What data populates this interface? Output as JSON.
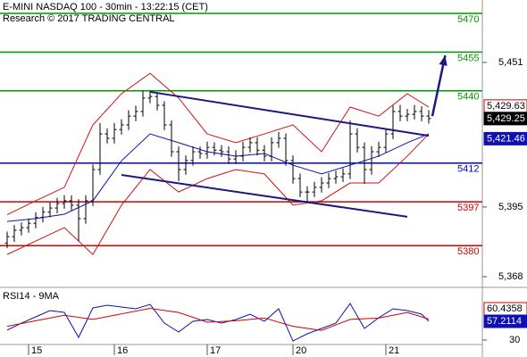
{
  "chart_data": [
    {
      "type": "ohlc",
      "title": "E-MINI NASDAQ 100 - 30min - 13:22:15 (CET)",
      "subtitle": "Research © 2017 TRADING CENTRAL",
      "color": "#000000",
      "open": [
        5381,
        5383.5,
        5386,
        5387,
        5388.7,
        5391,
        5393,
        5394.6,
        5396.3,
        5397.4,
        5395.7,
        5390.5,
        5397.4,
        5409.5,
        5423.3,
        5421.6,
        5425,
        5426.8,
        5430.2,
        5432,
        5437.2,
        5437.8,
        5434.4,
        5426.8,
        5416.4,
        5409.5,
        5413,
        5416.4,
        5415.7,
        5418.1,
        5417,
        5416.4,
        5413.6,
        5414.7,
        5418.1,
        5419.9,
        5417,
        5414.7,
        5419.9,
        5421.6,
        5413,
        5406,
        5400.8,
        5400.8,
        5402.6,
        5404.3,
        5406,
        5406.7,
        5407.8,
        5423.3,
        5418.1,
        5409.5,
        5416.4,
        5418.1,
        5423.3,
        5432,
        5430.2,
        5430.9,
        5432,
        5430.2
      ],
      "high": [
        5385.5,
        5388,
        5389,
        5390.5,
        5393,
        5395,
        5396.8,
        5398.5,
        5399.6,
        5399.5,
        5398,
        5399.6,
        5411.5,
        5427.5,
        5425.5,
        5427.5,
        5429,
        5432.5,
        5434.2,
        5440,
        5440,
        5439.5,
        5436,
        5428.5,
        5418.5,
        5415,
        5418.5,
        5418.5,
        5420.3,
        5420,
        5419,
        5418.5,
        5417,
        5420.3,
        5422,
        5422,
        5419,
        5422,
        5424,
        5423.5,
        5415,
        5408,
        5403,
        5404.8,
        5406.5,
        5408.2,
        5409,
        5410,
        5428.5,
        5425.5,
        5420,
        5418.6,
        5420.3,
        5425.5,
        5434.2,
        5434.5,
        5433,
        5434.5,
        5434,
        5432.5
      ],
      "low": [
        5379,
        5381.5,
        5384,
        5385,
        5386.7,
        5389,
        5391,
        5392.6,
        5394.3,
        5393.7,
        5381.8,
        5388.5,
        5395.4,
        5407.5,
        5419.6,
        5419.6,
        5423,
        5424.8,
        5428.2,
        5430,
        5435.2,
        5432.4,
        5424.8,
        5414.4,
        5405,
        5407.5,
        5411,
        5413.7,
        5413.7,
        5415,
        5414.4,
        5411.6,
        5411.6,
        5412.7,
        5416.1,
        5415,
        5412.7,
        5412.7,
        5417.9,
        5411,
        5404,
        5398.8,
        5397,
        5398.8,
        5400.6,
        5402.3,
        5404,
        5404.7,
        5405.8,
        5416.1,
        5404,
        5407.5,
        5414.4,
        5416.1,
        5421.3,
        5428.2,
        5428.2,
        5428.9,
        5428.2,
        5427.3
      ],
      "close": [
        5383.5,
        5386,
        5387,
        5388.7,
        5391,
        5393,
        5394.6,
        5396.3,
        5397.4,
        5395.7,
        5390.5,
        5397.4,
        5409.5,
        5423.3,
        5421.6,
        5425,
        5426.8,
        5430.2,
        5432,
        5437.2,
        5437.8,
        5434.4,
        5426.8,
        5416.4,
        5409.5,
        5413,
        5416.4,
        5415.7,
        5418.1,
        5417,
        5416.4,
        5413.6,
        5414.7,
        5418.1,
        5419.9,
        5417,
        5414.7,
        5419.9,
        5421.6,
        5413,
        5406,
        5400.8,
        5400.8,
        5402.6,
        5404.3,
        5406,
        5406.7,
        5407.8,
        5423.3,
        5418.1,
        5409.5,
        5416.4,
        5418.1,
        5423.3,
        5432,
        5430.2,
        5430.9,
        5432,
        5430.2,
        5429.25
      ],
      "xlim": [
        -0.375,
        66.5
      ],
      "xticks": [
        {
          "value": 3,
          "label": "15"
        },
        {
          "value": 15,
          "label": "16"
        },
        {
          "value": 28,
          "label": "17"
        },
        {
          "value": 40,
          "label": "20"
        },
        {
          "value": 53,
          "label": "21"
        }
      ],
      "ylim": [
        5363.85,
        5475.19
      ],
      "yticks": [
        {
          "value": 5451,
          "label": "5,451"
        },
        {
          "value": 5395,
          "label": "5,395"
        },
        {
          "value": 5368,
          "label": "5,368"
        }
      ],
      "levels": [
        {
          "value": 5470,
          "color": "#009900"
        },
        {
          "value": 5455,
          "color": "#009900"
        },
        {
          "value": 5440,
          "color": "#009900"
        },
        {
          "value": 5412,
          "color": "#0000cc"
        },
        {
          "value": 5397,
          "color": "#cc0000"
        },
        {
          "value": 5380,
          "color": "#cc0000"
        }
      ],
      "overlays": [
        {
          "color": "#d01010",
          "x": [
            0,
            4,
            8,
            12,
            16,
            20,
            24,
            28,
            32,
            36,
            40,
            44,
            48,
            52,
            56,
            59
          ],
          "values": [
            5392,
            5397.4,
            5402.6,
            5426.8,
            5438.9,
            5446.8,
            5437.2,
            5423.3,
            5419.9,
            5423.3,
            5426.8,
            5416.4,
            5433.7,
            5430.2,
            5438.9,
            5433.7
          ]
        },
        {
          "color": "#d01010",
          "x": [
            0,
            4,
            8,
            12,
            16,
            20,
            24,
            28,
            32,
            36,
            40,
            44,
            48,
            52,
            56,
            59
          ],
          "values": [
            5376.6,
            5381.8,
            5387,
            5376.6,
            5395.7,
            5409.5,
            5400.8,
            5406,
            5409.5,
            5407.8,
            5395.7,
            5397.4,
            5404.3,
            5404.3,
            5414.7,
            5423.3
          ]
        },
        {
          "color": "#1010b0",
          "x": [
            0,
            4,
            8,
            12,
            16,
            20,
            24,
            28,
            32,
            36,
            40,
            44,
            48,
            52,
            56,
            59
          ],
          "values": [
            5389.4,
            5390.5,
            5392.2,
            5397.4,
            5412.9,
            5423.3,
            5419.9,
            5416.4,
            5414.7,
            5415.7,
            5411.2,
            5407.8,
            5411.2,
            5414.7,
            5419.9,
            5423.3
          ]
        }
      ],
      "trendlines": [
        {
          "color": "#1a1a80",
          "x": [
            20,
            59
          ],
          "values": [
            5439.6,
            5422.6
          ]
        },
        {
          "color": "#1a1a80",
          "x": [
            16,
            56
          ],
          "values": [
            5407.4,
            5391.2
          ]
        }
      ],
      "arrow": {
        "color": "#1a1a80",
        "x": [
          59.5,
          61.3
        ],
        "values": [
          5430.2,
          5453.7
        ]
      },
      "last_values": [
        {
          "value": 5429.63,
          "label": "5,429.63",
          "style": "outline",
          "color": "#cc0000"
        },
        {
          "value": 5429.25,
          "label": "5,429.25",
          "style": "fill",
          "color": "#000000"
        },
        {
          "value": 5421.46,
          "label": "5,421.46",
          "style": "fill",
          "color": "#1010b0"
        }
      ]
    },
    {
      "type": "line",
      "title": "RSI14 - 9MA",
      "xlim": [
        -0.375,
        66.5
      ],
      "ylim": [
        8,
        100
      ],
      "yticks": [
        30
      ],
      "series": [
        {
          "color": "#1010b0",
          "x": [
            0,
            2,
            4,
            6,
            8,
            10,
            12,
            14,
            16,
            18,
            20,
            22,
            24,
            26,
            28,
            30,
            32,
            34,
            36,
            38,
            40,
            42,
            44,
            46,
            48,
            50,
            52,
            54,
            56,
            58,
            59
          ],
          "values": [
            44.3,
            54.6,
            63.7,
            72.8,
            70.2,
            33.9,
            76.7,
            80.5,
            78,
            75.4,
            81.8,
            54.6,
            41.7,
            57.2,
            59.8,
            54.6,
            59.8,
            67.6,
            57.2,
            75.4,
            28.7,
            39.1,
            46.9,
            54.6,
            83.1,
            46.9,
            62.4,
            75.4,
            72.8,
            67.6,
            57.2114
          ]
        },
        {
          "color": "#cc0000",
          "x": [
            0,
            4,
            8,
            12,
            16,
            20,
            24,
            28,
            32,
            36,
            40,
            44,
            48,
            52,
            56,
            59
          ],
          "values": [
            50,
            58,
            66,
            60,
            68,
            76,
            70,
            56,
            58,
            62,
            50,
            44,
            60,
            62,
            70,
            60.4358
          ]
        }
      ],
      "last_values": [
        {
          "value": 60.4358,
          "style": "outline",
          "color": "#cc0000"
        },
        {
          "value": 57.2114,
          "style": "fill",
          "color": "#1010b0"
        }
      ]
    }
  ]
}
